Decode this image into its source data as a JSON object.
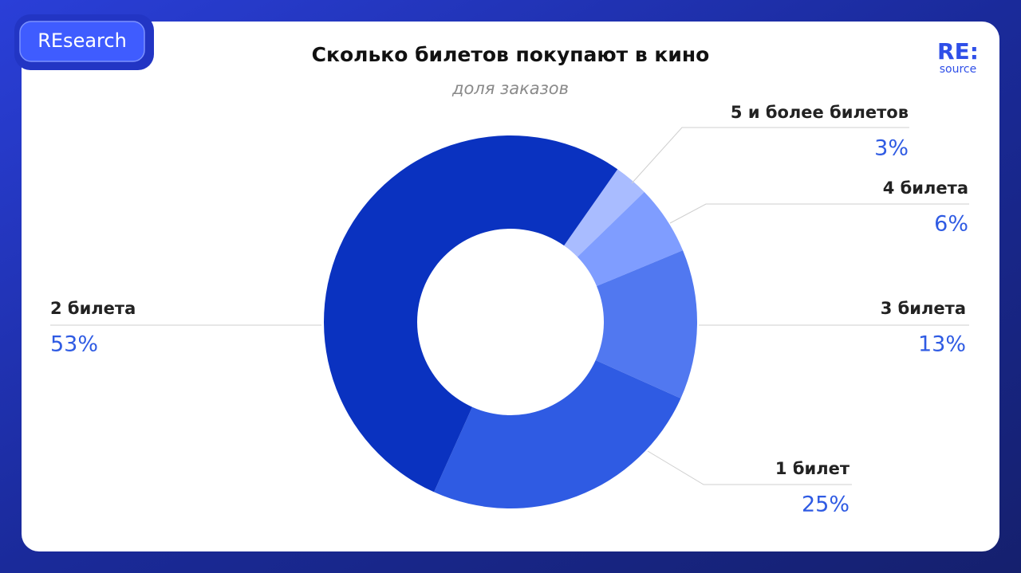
{
  "badge": "REsearch",
  "logo": {
    "main": "RE:",
    "sub": "source"
  },
  "chart_data": {
    "type": "donut",
    "title": "Сколько билетов покупают в кино",
    "subtitle": "доля заказов",
    "categories": [
      "5 и более билетов",
      "4 билета",
      "3 билета",
      "1 билет",
      "2 билета"
    ],
    "values": [
      3,
      6,
      13,
      25,
      53
    ],
    "value_labels": [
      "3%",
      "6%",
      "13%",
      "25%",
      "53%"
    ],
    "colors": [
      "#a9bcff",
      "#7f9dff",
      "#5178f0",
      "#2f5be3",
      "#0a32c0"
    ]
  }
}
